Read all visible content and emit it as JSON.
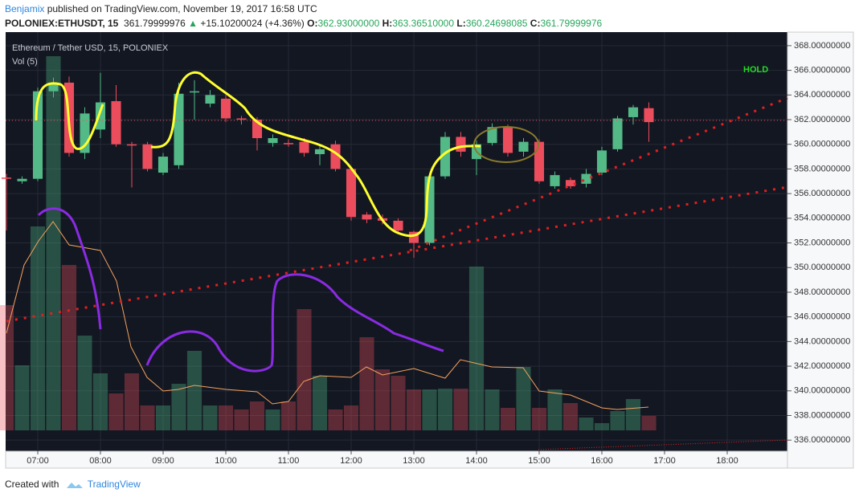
{
  "header": {
    "author": "Benjamix",
    "published": "published on TradingView.com, November 19, 2017 16:58 UTC",
    "symbol": "POLONIEX:ETHUSDT, 15",
    "last": "361.79999976",
    "arrow": "▲",
    "change": "+15.10200024 (+4.36%)",
    "o_label": "O:",
    "o": "362.93000000",
    "h_label": "H:",
    "h": "363.36510000",
    "l_label": "L:",
    "l": "360.24698085",
    "c_label": "C:",
    "c": "361.79999976"
  },
  "footer": {
    "created": "Created with",
    "brand": "TradingView"
  },
  "chart_data": {
    "type": "candlestick",
    "title": "Ethereum / Tether USD, 15, POLONIEX",
    "volume_label": "Vol (5)",
    "annotation": "HOLD",
    "up_color": "#53b987",
    "down_color": "#eb4d5c",
    "x": [
      6.5,
      6.75,
      7,
      7.25,
      7.5,
      7.75,
      8,
      8.25,
      8.5,
      8.75,
      9,
      9.25,
      9.5,
      9.75,
      10,
      10.25,
      10.5,
      10.75,
      11,
      11.25,
      11.5,
      11.75,
      12,
      12.25,
      12.5,
      12.75,
      13,
      13.25,
      13.5,
      13.75,
      14,
      14.25,
      14.5,
      14.75,
      15,
      15.25,
      15.5,
      15.75,
      16,
      16.25,
      16.5,
      16.75
    ],
    "open": [
      357.3,
      357.0,
      357.2,
      364.3,
      365.0,
      359.3,
      361.2,
      363.5,
      360.0,
      360.0,
      357.7,
      358.3,
      364.2,
      363.3,
      363.7,
      362.1,
      362.0,
      360.1,
      360.1,
      360.2,
      359.2,
      360.0,
      358.0,
      354.3,
      354.0,
      353.8,
      352.9,
      352.0,
      357.4,
      360.6,
      358.8,
      360.1,
      361.4,
      359.4,
      360.2,
      356.6,
      357.1,
      356.8,
      357.7,
      359.6,
      362.2,
      362.93
    ],
    "high": [
      357.6,
      357.4,
      364.6,
      365.4,
      365.5,
      363.0,
      365.8,
      364.8,
      360.2,
      360.2,
      359.3,
      365.0,
      365.2,
      364.4,
      364.0,
      362.3,
      362.2,
      360.8,
      360.4,
      360.5,
      359.9,
      360.3,
      358.2,
      354.5,
      354.3,
      354.0,
      353.0,
      357.6,
      361.0,
      361.0,
      360.3,
      361.7,
      361.6,
      360.5,
      360.4,
      357.8,
      357.3,
      358.0,
      359.8,
      362.3,
      363.2,
      363.4
    ],
    "low": [
      353.0,
      356.8,
      357.0,
      363.8,
      359.0,
      358.8,
      360.5,
      359.8,
      356.5,
      357.8,
      357.5,
      358.0,
      362.0,
      363.0,
      361.8,
      361.6,
      359.5,
      359.8,
      359.8,
      359.0,
      358.3,
      357.8,
      353.8,
      353.6,
      353.5,
      352.8,
      350.8,
      351.8,
      357.2,
      359.0,
      357.5,
      359.9,
      359.0,
      359.0,
      356.8,
      356.4,
      356.4,
      356.5,
      357.5,
      359.4,
      361.6,
      360.2
    ],
    "close": [
      357.2,
      357.2,
      364.3,
      365.0,
      359.3,
      362.5,
      363.4,
      360.0,
      359.9,
      358.0,
      359.0,
      364.1,
      364.3,
      364.0,
      362.1,
      362.0,
      360.5,
      360.5,
      360.0,
      359.3,
      359.6,
      358.0,
      354.1,
      353.9,
      353.8,
      353.0,
      352.0,
      357.4,
      360.6,
      359.4,
      360.0,
      361.4,
      359.3,
      360.2,
      357.0,
      357.5,
      356.6,
      357.6,
      359.5,
      362.1,
      363.0,
      361.8
    ],
    "volume": [
      156,
      81,
      254,
      466,
      206,
      118,
      71,
      46,
      71,
      31,
      31,
      58,
      99,
      31,
      31,
      26,
      36,
      26,
      36,
      151,
      68,
      26,
      31,
      116,
      76,
      68,
      51,
      51,
      52,
      52,
      204,
      51,
      28,
      79,
      28,
      51,
      34,
      16,
      9,
      24,
      39,
      18
    ],
    "volume_ylim": [
      0,
      500
    ],
    "xlim": [
      6.5,
      19
    ],
    "xticks": [
      {
        "value": 7,
        "label": "07:00"
      },
      {
        "value": 8,
        "label": "08:00"
      },
      {
        "value": 9,
        "label": "09:00"
      },
      {
        "value": 10,
        "label": "10:00"
      },
      {
        "value": 11,
        "label": "11:00"
      },
      {
        "value": 12,
        "label": "12:00"
      },
      {
        "value": 13,
        "label": "13:00"
      },
      {
        "value": 14,
        "label": "14:00"
      },
      {
        "value": 15,
        "label": "15:00"
      },
      {
        "value": 16,
        "label": "16:00"
      },
      {
        "value": 17,
        "label": "17:00"
      },
      {
        "value": 18,
        "label": "18:00"
      }
    ],
    "ylim": [
      335.1,
      369.1
    ],
    "yticks": [
      {
        "value": 336,
        "label": "336.00000000"
      },
      {
        "value": 338,
        "label": "338.00000000"
      },
      {
        "value": 340,
        "label": "340.00000000"
      },
      {
        "value": 342,
        "label": "342.00000000"
      },
      {
        "value": 344,
        "label": "344.00000000"
      },
      {
        "value": 346,
        "label": "346.00000000"
      },
      {
        "value": 348,
        "label": "348.00000000"
      },
      {
        "value": 350,
        "label": "350.00000000"
      },
      {
        "value": 352,
        "label": "352.00000000"
      },
      {
        "value": 354,
        "label": "354.00000000"
      },
      {
        "value": 356,
        "label": "356.00000000"
      },
      {
        "value": 358,
        "label": "358.00000000"
      },
      {
        "value": 360,
        "label": "360.00000000"
      },
      {
        "value": 362,
        "label": "362.00000000"
      },
      {
        "value": 364,
        "label": "364.00000000"
      },
      {
        "value": 366,
        "label": "366.00000000"
      },
      {
        "value": 368,
        "label": "368.00000000"
      }
    ],
    "grid": true
  }
}
